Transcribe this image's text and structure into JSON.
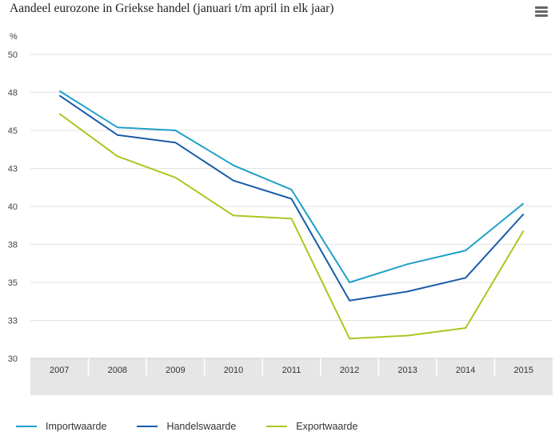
{
  "title": "Aandeel eurozone in Griekse handel (januari t/m april in elk jaar)",
  "unit_label": "%",
  "menu_icon": "hamburger-menu-icon",
  "chart_data": {
    "type": "line",
    "title": "Aandeel eurozone in Griekse handel (januari t/m april in elk jaar)",
    "ylabel": "%",
    "xlabel": "",
    "categories": [
      "2007",
      "2008",
      "2009",
      "2010",
      "2011",
      "2012",
      "2013",
      "2014",
      "2015"
    ],
    "ylim": [
      30,
      50
    ],
    "yticks": [
      30,
      32.5,
      35,
      37.5,
      40,
      42.5,
      45,
      47.5,
      50
    ],
    "ytick_labels": [
      "30",
      "33",
      "35",
      "38",
      "40",
      "43",
      "45",
      "48",
      "50"
    ],
    "grid": true,
    "legend_position": "bottom-left",
    "series": [
      {
        "name": "Importwaarde",
        "color": "#1fa0c8",
        "values": [
          47.6,
          45.2,
          45.0,
          42.7,
          41.1,
          35.0,
          36.2,
          37.1,
          40.2
        ]
      },
      {
        "name": "Handelswaarde",
        "color": "#1a5ca8",
        "values": [
          47.3,
          44.7,
          44.2,
          41.7,
          40.5,
          33.8,
          34.4,
          35.3,
          39.5
        ]
      },
      {
        "name": "Exportwaarde",
        "color": "#a9c721",
        "values": [
          46.1,
          43.3,
          41.9,
          39.4,
          39.2,
          31.3,
          31.5,
          32.0,
          38.4
        ]
      }
    ]
  }
}
